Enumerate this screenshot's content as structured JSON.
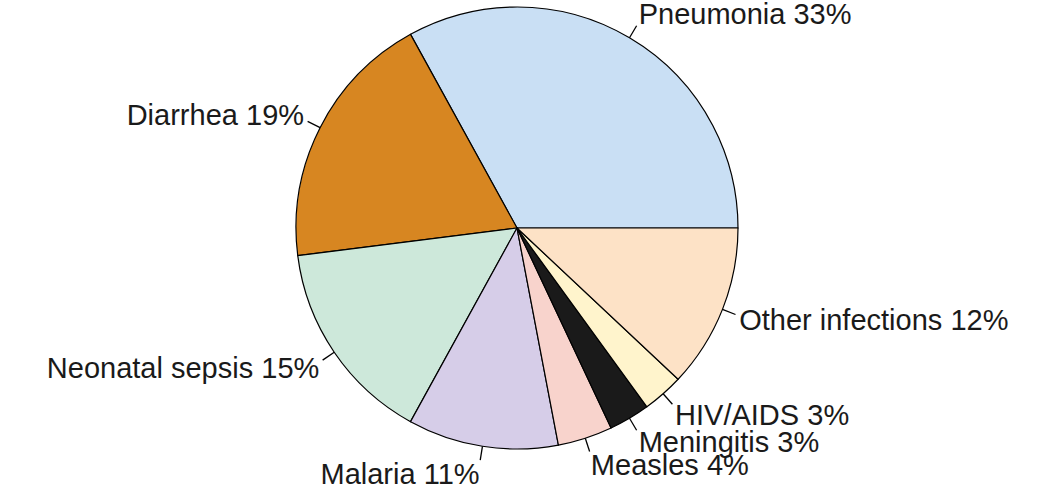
{
  "chart_data": {
    "type": "pie",
    "categories": [
      "Pneumonia",
      "Diarrhea",
      "Neonatal sepsis",
      "Malaria",
      "Measles",
      "Meningitis",
      "HIV/AIDS",
      "Other infections"
    ],
    "values": [
      33,
      19,
      15,
      11,
      4,
      3,
      3,
      12
    ],
    "value_labels": [
      "33%",
      "19%",
      "15%",
      "11%",
      "4%",
      "3%",
      "3%",
      "12%"
    ],
    "colors": [
      "#c9dff4",
      "#d78621",
      "#cde8da",
      "#d6cde8",
      "#f8d3cc",
      "#1a1a1a",
      "#fff4cc",
      "#fde2c6"
    ],
    "data_labels": true
  }
}
